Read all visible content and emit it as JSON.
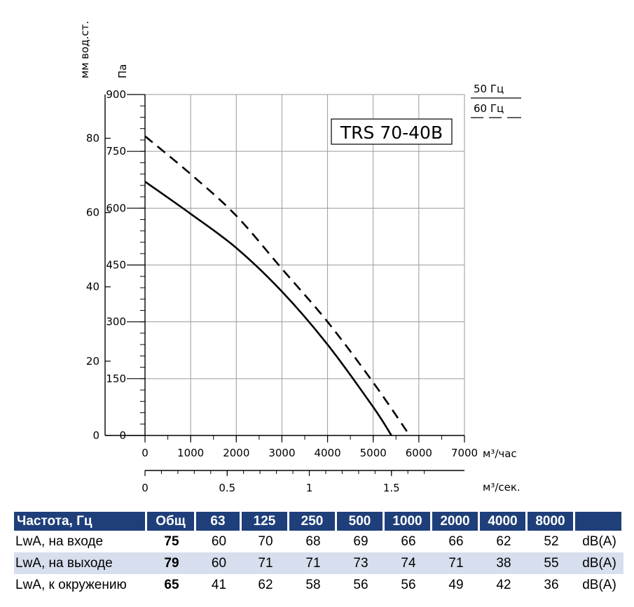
{
  "chart_data": {
    "type": "line",
    "title": "TRS 70-40B",
    "y_axis_left_unit": "мм вод.ст.",
    "y_axis_right_unit": "Па",
    "y_left_ticks": [
      "0",
      "20",
      "40",
      "60",
      "80"
    ],
    "y_right_ticks": [
      "0",
      "150",
      "300",
      "450",
      "600",
      "750",
      "900"
    ],
    "x_unit": "м³/час",
    "x_ticks": [
      "0",
      "1000",
      "2000",
      "3000",
      "4000",
      "5000",
      "6000",
      "7000"
    ],
    "x2_unit": "м³/сек.",
    "x2_ticks": [
      "0",
      "0.5",
      "1",
      "1.5"
    ],
    "xlim": [
      0,
      7000
    ],
    "ylim": [
      0,
      900
    ],
    "grid": true,
    "legend_position": "top-right",
    "series": [
      {
        "name": "50 Гц",
        "style": "solid",
        "x": [
          0,
          1000,
          2000,
          3000,
          4000,
          5000,
          5400
        ],
        "y": [
          670,
          585,
          495,
          380,
          240,
          75,
          0
        ]
      },
      {
        "name": "60 Гц",
        "style": "dashed",
        "x": [
          0,
          1000,
          2000,
          3000,
          4000,
          5000,
          5800
        ],
        "y": [
          790,
          690,
          580,
          440,
          300,
          140,
          0
        ]
      }
    ]
  },
  "table": {
    "headers": [
      "Частота, Гц",
      "Общ",
      "63",
      "125",
      "250",
      "500",
      "1000",
      "2000",
      "4000",
      "8000",
      ""
    ],
    "rows": [
      {
        "label": "LwA, на входе",
        "total": "75",
        "values": [
          "60",
          "70",
          "68",
          "69",
          "66",
          "66",
          "62",
          "52"
        ],
        "unit": "dB(A)"
      },
      {
        "label": "LwA, на выходе",
        "total": "79",
        "values": [
          "60",
          "71",
          "71",
          "73",
          "74",
          "71",
          "38",
          "55"
        ],
        "unit": "dB(A)"
      },
      {
        "label": "LwA, к окружению",
        "total": "65",
        "values": [
          "41",
          "62",
          "58",
          "56",
          "56",
          "49",
          "42",
          "36"
        ],
        "unit": "dB(A)"
      }
    ]
  },
  "colors": {
    "header_bg": "#1f3f7a",
    "row_shade": "#d7deed",
    "grid": "#9a9a9a"
  }
}
